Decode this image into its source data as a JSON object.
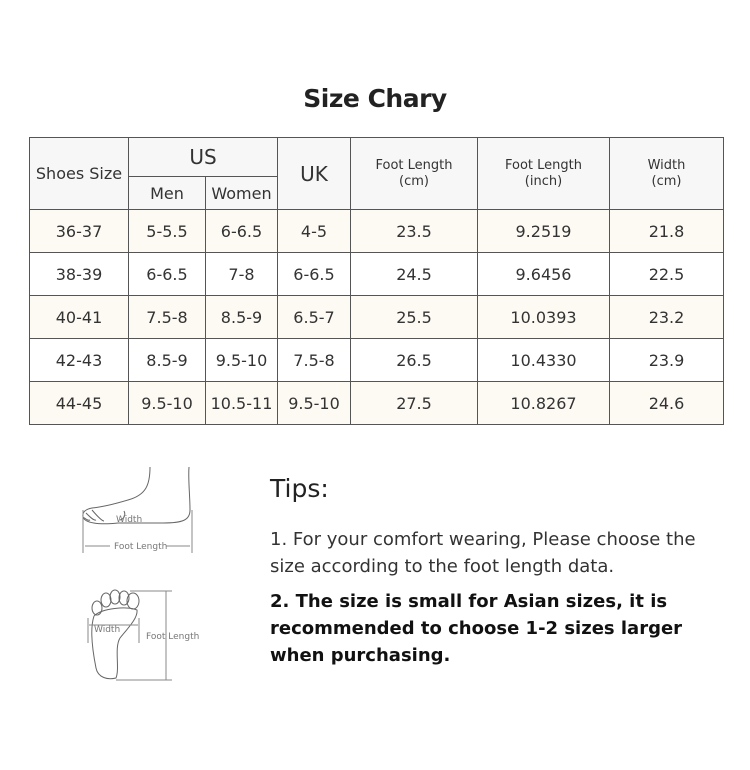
{
  "title": "Size Chary",
  "table": {
    "headers": {
      "shoes_size": "Shoes Size",
      "us": "US",
      "men": "Men",
      "women": "Women",
      "uk": "UK",
      "foot_length_cm": [
        "Foot Length",
        "(cm)"
      ],
      "foot_length_inch": [
        "Foot Length",
        "(inch)"
      ],
      "width_cm": [
        "Width",
        "(cm)"
      ]
    },
    "rows": [
      [
        "36-37",
        "5-5.5",
        "6-6.5",
        "4-5",
        "23.5",
        "9.2519",
        "21.8"
      ],
      [
        "38-39",
        "6-6.5",
        "7-8",
        "6-6.5",
        "24.5",
        "9.6456",
        "22.5"
      ],
      [
        "40-41",
        "7.5-8",
        "8.5-9",
        "6.5-7",
        "25.5",
        "10.0393",
        "23.2"
      ],
      [
        "42-43",
        "8.5-9",
        "9.5-10",
        "7.5-8",
        "26.5",
        "10.4330",
        "23.9"
      ],
      [
        "44-45",
        "9.5-10",
        "10.5-11",
        "9.5-10",
        "27.5",
        "10.8267",
        "24.6"
      ]
    ],
    "colors": {
      "border": "#555555",
      "header_bg": "#f7f7f7",
      "alt_row_bg": "#fdf9f3"
    }
  },
  "diagram": {
    "side_width_label": "Width",
    "side_length_label": "Foot Length",
    "sole_width_label": "Width",
    "sole_length_label": "Foot Length"
  },
  "tips": {
    "heading": "Tips:",
    "items": [
      "1. For your comfort wearing, Please choose the size according to the foot length data.",
      "2. The size is small for Asian sizes, it is recommended to choose 1-2 sizes larger when purchasing."
    ]
  }
}
